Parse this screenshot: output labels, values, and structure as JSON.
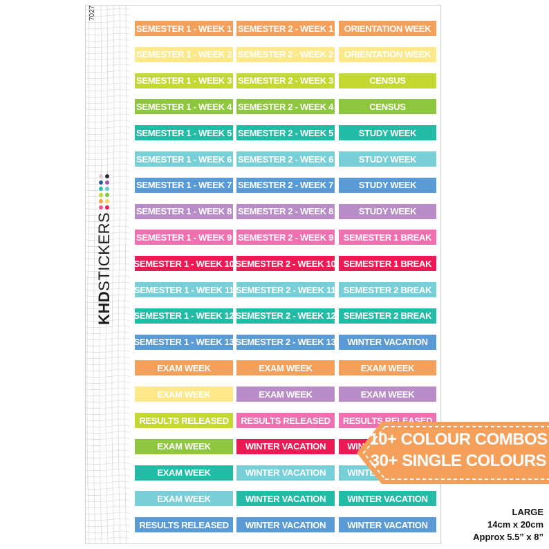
{
  "sheet": {
    "id": "7027",
    "brand_bold": "KHD",
    "brand_light": "STICKERS",
    "brand_dots": [
      "#f0558c",
      "#f9a03f",
      "#b9d531",
      "#27c0a9",
      "#2c5aa0",
      "#e9c3d6",
      "#ec1e54",
      "#fbd26b",
      "#7dc242",
      "#6cc8d8",
      "#9b59b6",
      "#2d2d3a"
    ]
  },
  "columns": [
    [
      {
        "label": "SEMESTER 1 - WEEK 1",
        "color": "#f5a05a"
      },
      {
        "label": "SEMESTER 1 - WEEK 2",
        "color": "#fce88a"
      },
      {
        "label": "SEMESTER 1 - WEEK 3",
        "color": "#c3d932"
      },
      {
        "label": "SEMESTER 1 - WEEK 4",
        "color": "#8ec63f"
      },
      {
        "label": "SEMESTER 1 - WEEK 5",
        "color": "#22bba6"
      },
      {
        "label": "SEMESTER 1 - WEEK 6",
        "color": "#78cfd8"
      },
      {
        "label": "SEMESTER 1 - WEEK 7",
        "color": "#5b9bd5"
      },
      {
        "label": "SEMESTER 1 - WEEK 8",
        "color": "#b88cc6"
      },
      {
        "label": "SEMESTER 1 - WEEK 9",
        "color": "#f06fb0"
      },
      {
        "label": "SEMESTER 1 - WEEK 10",
        "color": "#ec1a54"
      },
      {
        "label": "SEMESTER 1 - WEEK 11",
        "color": "#78cfd8"
      },
      {
        "label": "SEMESTER 1 - WEEK 12",
        "color": "#22bba6"
      },
      {
        "label": "SEMESTER 1 - WEEK 13",
        "color": "#5b9bd5"
      },
      {
        "label": "EXAM WEEK",
        "color": "#f5a05a"
      },
      {
        "label": "EXAM WEEK",
        "color": "#fce88a"
      },
      {
        "label": "RESULTS RELEASED",
        "color": "#c3d932"
      },
      {
        "label": "EXAM WEEK",
        "color": "#8ec63f"
      },
      {
        "label": "EXAM WEEK",
        "color": "#22bba6"
      },
      {
        "label": "EXAM WEEK",
        "color": "#78cfd8"
      },
      {
        "label": "RESULTS RELEASED",
        "color": "#5b9bd5"
      }
    ],
    [
      {
        "label": "SEMESTER 2 - WEEK 1",
        "color": "#f5a05a"
      },
      {
        "label": "SEMESTER 2 - WEEK 2",
        "color": "#fce88a"
      },
      {
        "label": "SEMESTER 2 - WEEK 3",
        "color": "#c3d932"
      },
      {
        "label": "SEMESTER 2 - WEEK 4",
        "color": "#8ec63f"
      },
      {
        "label": "SEMESTER 2 - WEEK 5",
        "color": "#22bba6"
      },
      {
        "label": "SEMESTER 2 - WEEK 6",
        "color": "#78cfd8"
      },
      {
        "label": "SEMESTER 2 - WEEK 7",
        "color": "#5b9bd5"
      },
      {
        "label": "SEMESTER 2 - WEEK 8",
        "color": "#b88cc6"
      },
      {
        "label": "SEMESTER 2 - WEEK 9",
        "color": "#f06fb0"
      },
      {
        "label": "SEMESTER 2 - WEEK 10",
        "color": "#ec1a54"
      },
      {
        "label": "SEMESTER 2 - WEEK 11",
        "color": "#78cfd8"
      },
      {
        "label": "SEMESTER 2 - WEEK 12",
        "color": "#22bba6"
      },
      {
        "label": "SEMESTER 2 - WEEK 13",
        "color": "#5b9bd5"
      },
      {
        "label": "EXAM WEEK",
        "color": "#f5a05a"
      },
      {
        "label": "EXAM WEEK",
        "color": "#b88cc6"
      },
      {
        "label": "RESULTS RELEASED",
        "color": "#f06fb0"
      },
      {
        "label": "WINTER VACATION",
        "color": "#ec1a54"
      },
      {
        "label": "WINTER VACATION",
        "color": "#78cfd8"
      },
      {
        "label": "WINTER VACATION",
        "color": "#22bba6"
      },
      {
        "label": "WINTER VACATION",
        "color": "#5b9bd5"
      }
    ],
    [
      {
        "label": "ORIENTATION WEEK",
        "color": "#f5a05a"
      },
      {
        "label": "ORIENTATION WEEK",
        "color": "#fce88a"
      },
      {
        "label": "CENSUS",
        "color": "#c3d932"
      },
      {
        "label": "CENSUS",
        "color": "#8ec63f"
      },
      {
        "label": "STUDY WEEK",
        "color": "#22bba6"
      },
      {
        "label": "STUDY WEEK",
        "color": "#78cfd8"
      },
      {
        "label": "STUDY WEEK",
        "color": "#5b9bd5"
      },
      {
        "label": "STUDY WEEK",
        "color": "#b88cc6"
      },
      {
        "label": "SEMESTER 1 BREAK",
        "color": "#f06fb0"
      },
      {
        "label": "SEMESTER 1 BREAK",
        "color": "#ec1a54"
      },
      {
        "label": "SEMESTER 2 BREAK",
        "color": "#78cfd8"
      },
      {
        "label": "SEMESTER 2 BREAK",
        "color": "#22bba6"
      },
      {
        "label": "WINTER VACATION",
        "color": "#5b9bd5"
      },
      {
        "label": "EXAM WEEK",
        "color": "#f5a05a"
      },
      {
        "label": "EXAM WEEK",
        "color": "#b88cc6"
      },
      {
        "label": "RESULTS RELEASED",
        "color": "#f06fb0"
      },
      {
        "label": "WINTER VACATION",
        "color": "#ec1a54"
      },
      {
        "label": "WINTER VACATION",
        "color": "#78cfd8"
      },
      {
        "label": "WINTER VACATION",
        "color": "#22bba6"
      },
      {
        "label": "WINTER VACATION",
        "color": "#5b9bd5"
      }
    ]
  ],
  "badge": {
    "line1": "10+ COLOUR COMBOS",
    "line2": "30+ SINGLE COLOURS",
    "color": "#f5a05a"
  },
  "size_info": {
    "line1": "LARGE",
    "line2": "14cm x 20cm",
    "line3": "Approx 5.5” x 8”"
  }
}
